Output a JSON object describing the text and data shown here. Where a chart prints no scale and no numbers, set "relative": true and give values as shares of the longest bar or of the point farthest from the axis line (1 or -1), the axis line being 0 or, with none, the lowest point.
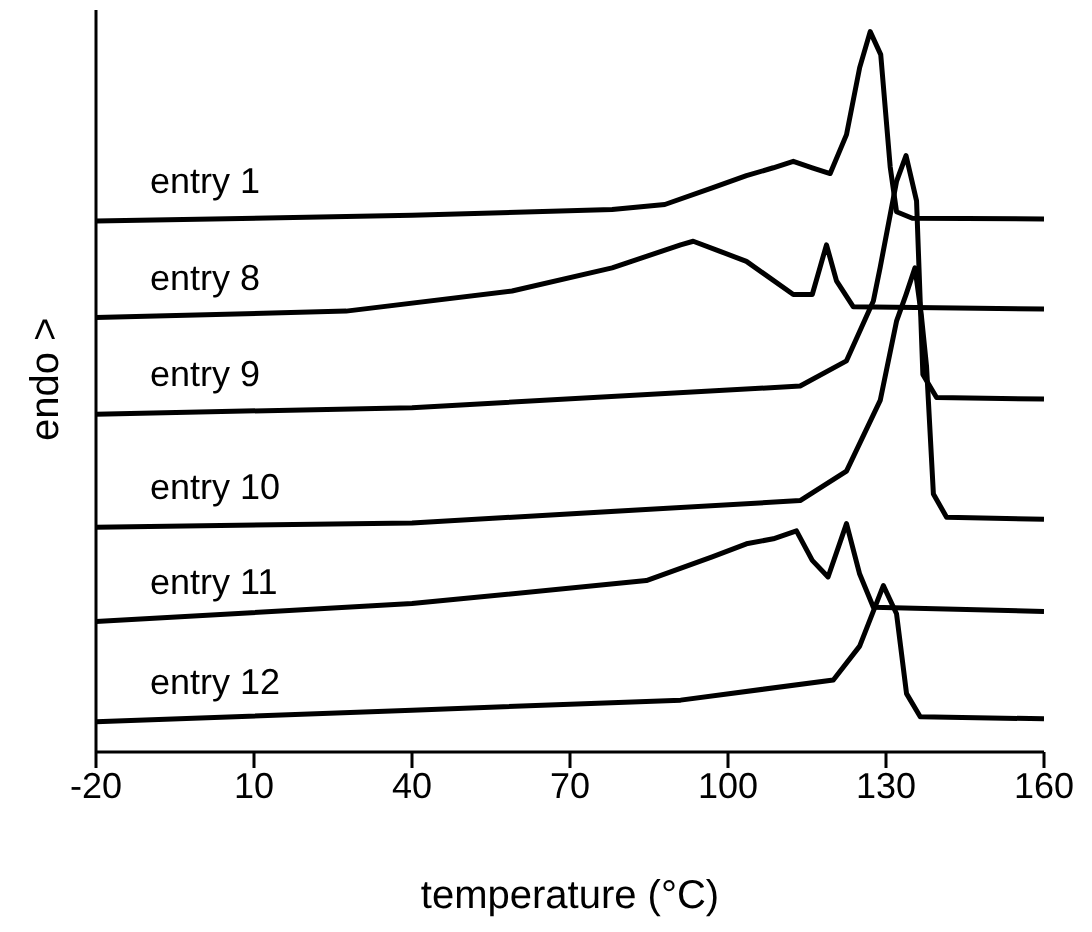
{
  "chart_data": {
    "type": "line",
    "relative": true,
    "xlabel": "temperature (°C)",
    "ylabel": "endo >",
    "xlim": [
      -20,
      160
    ],
    "xticks": [
      -20,
      10,
      40,
      70,
      100,
      130,
      160
    ],
    "grid": false,
    "legend": false,
    "marker": "none",
    "line_style": "solid",
    "series": [
      {
        "name": "entry 1",
        "color": "#000000",
        "x": [
          -20,
          40,
          78,
          88,
          97,
          103.5,
          108.6,
          112.4,
          116,
          119.4,
          122.5,
          125,
          127,
          129,
          130.8,
          132,
          135,
          160
        ],
        "values": [
          0.737,
          0.745,
          0.753,
          0.76,
          0.783,
          0.8,
          0.811,
          0.82,
          0.811,
          0.803,
          0.857,
          0.95,
          1,
          0.968,
          0.812,
          0.75,
          0.741,
          0.74
        ]
      },
      {
        "name": "entry 8",
        "color": "#000000",
        "x": [
          -20,
          27.5,
          59,
          78,
          91,
          93.4,
          98.5,
          103.5,
          107,
          112.4,
          116,
          118.7,
          120.6,
          123.8,
          160
        ],
        "values": [
          0.603,
          0.612,
          0.64,
          0.672,
          0.704,
          0.709,
          0.695,
          0.681,
          0.663,
          0.635,
          0.635,
          0.704,
          0.654,
          0.618,
          0.615
        ]
      },
      {
        "name": "entry 9",
        "color": "#000000",
        "x": [
          -20,
          40,
          113.7,
          122.5,
          127.6,
          128.9,
          132,
          133.8,
          135.8,
          137,
          139.6,
          160
        ],
        "values": [
          0.469,
          0.478,
          0.508,
          0.543,
          0.626,
          0.673,
          0.792,
          0.828,
          0.765,
          0.524,
          0.492,
          0.49
        ]
      },
      {
        "name": "entry 10",
        "color": "#000000",
        "x": [
          -20,
          40,
          113.7,
          122.5,
          128.9,
          132,
          133.8,
          135.5,
          136.7,
          137.7,
          139,
          141.5,
          160
        ],
        "values": [
          0.312,
          0.318,
          0.349,
          0.39,
          0.488,
          0.598,
          0.635,
          0.672,
          0.607,
          0.535,
          0.358,
          0.326,
          0.323
        ]
      },
      {
        "name": "entry 11",
        "color": "#000000",
        "x": [
          -20,
          40,
          84.5,
          97,
          103.5,
          108.6,
          113,
          116,
          119,
          122.5,
          125,
          127.6,
          160
        ],
        "values": [
          0.181,
          0.206,
          0.238,
          0.271,
          0.289,
          0.296,
          0.307,
          0.266,
          0.243,
          0.317,
          0.247,
          0.201,
          0.195
        ]
      },
      {
        "name": "entry 12",
        "color": "#000000",
        "x": [
          -20,
          40,
          91,
          120,
          125,
          129.5,
          132,
          133.9,
          136.5,
          160
        ],
        "values": [
          0.042,
          0.058,
          0.072,
          0.1,
          0.147,
          0.231,
          0.192,
          0.081,
          0.049,
          0.046
        ]
      }
    ]
  }
}
